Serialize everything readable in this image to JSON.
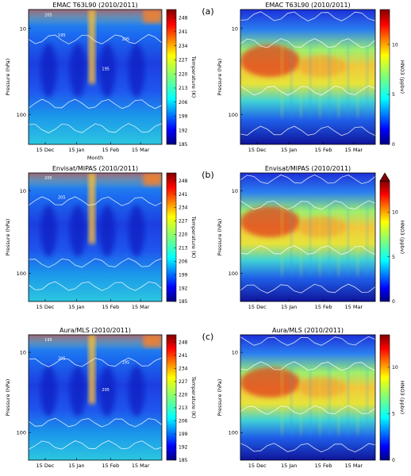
{
  "chart_data": [
    {
      "type": "heatmap",
      "title": "EMAC T63L90 (2010/2011)",
      "xlabel": "Month",
      "ylabel": "Pressure (hPa)",
      "xticks": [
        "15 Dec",
        "15 Jan",
        "15 Feb",
        "15 Mar"
      ],
      "yticks": [
        "10",
        "100"
      ],
      "colorbar": {
        "label": "Temperature (K)",
        "ticks": [
          "185",
          "192",
          "199",
          "206",
          "213",
          "220",
          "227",
          "234",
          "241",
          "248"
        ],
        "range": [
          185,
          252
        ]
      },
      "contour_labels": [
        "205",
        "195",
        "205",
        "195"
      ],
      "panel_label": ""
    },
    {
      "type": "heatmap",
      "title": "EMAC T63L90 (2010/2011)",
      "xlabel": "",
      "ylabel": "Pressure (hPa)",
      "xticks": [
        "15 Dec",
        "15 Jan",
        "15 Feb",
        "15 Mar"
      ],
      "yticks": [
        "10",
        "100"
      ],
      "colorbar": {
        "label": "HNO3 (ppbv)",
        "ticks": [
          "0",
          "5",
          "10"
        ],
        "range": [
          0,
          13.5
        ]
      },
      "contour_labels": [],
      "panel_label": "(a)"
    },
    {
      "type": "heatmap",
      "title": "Envisat/MIPAS (2010/2011)",
      "xlabel": "",
      "ylabel": "Pressure (hPa)",
      "xticks": [
        "15 Dec",
        "15 Jan",
        "15 Feb",
        "15 Mar"
      ],
      "yticks": [
        "10",
        "100"
      ],
      "colorbar": {
        "label": "Temperature (K)",
        "ticks": [
          "185",
          "192",
          "199",
          "206",
          "213",
          "220",
          "227",
          "234",
          "241",
          "248"
        ],
        "range": [
          185,
          252
        ]
      },
      "contour_labels": [
        "205",
        "205"
      ],
      "panel_label": ""
    },
    {
      "type": "heatmap",
      "title": "Envisat/MIPAS (2010/2011)",
      "xlabel": "",
      "ylabel": "Pressure (hPa)",
      "xticks": [
        "15 Dec",
        "15 Jan",
        "15 Feb",
        "15 Mar"
      ],
      "yticks": [
        "10",
        "100"
      ],
      "colorbar": {
        "label": "HNO3 (ppbv)",
        "ticks": [
          "0",
          "5",
          "10"
        ],
        "range": [
          0,
          13.5
        ],
        "extend": "max"
      },
      "contour_labels": [],
      "panel_label": "(b)"
    },
    {
      "type": "heatmap",
      "title": "Aura/MLS (2010/2011)",
      "xlabel": "",
      "ylabel": "Pressure (hPa)",
      "xticks": [
        "15 Dec",
        "15 Jan",
        "15 Feb",
        "15 Mar"
      ],
      "yticks": [
        "10",
        "100"
      ],
      "colorbar": {
        "label": "Temperature (K)",
        "ticks": [
          "185",
          "192",
          "199",
          "206",
          "213",
          "220",
          "227",
          "234",
          "241",
          "248"
        ],
        "range": [
          185,
          252
        ]
      },
      "contour_labels": [
        "195",
        "205",
        "195",
        "205"
      ],
      "panel_label": ""
    },
    {
      "type": "heatmap",
      "title": "Aura/MLS (2010/2011)",
      "xlabel": "",
      "ylabel": "Pressure (hPa)",
      "xticks": [
        "15 Dec",
        "15 Jan",
        "15 Feb",
        "15 Mar"
      ],
      "yticks": [
        "10",
        "100"
      ],
      "colorbar": {
        "label": "HNO3 (ppbv)",
        "ticks": [
          "0",
          "5",
          "10"
        ],
        "range": [
          0,
          13.5
        ]
      },
      "contour_labels": [],
      "panel_label": "(c)"
    }
  ]
}
